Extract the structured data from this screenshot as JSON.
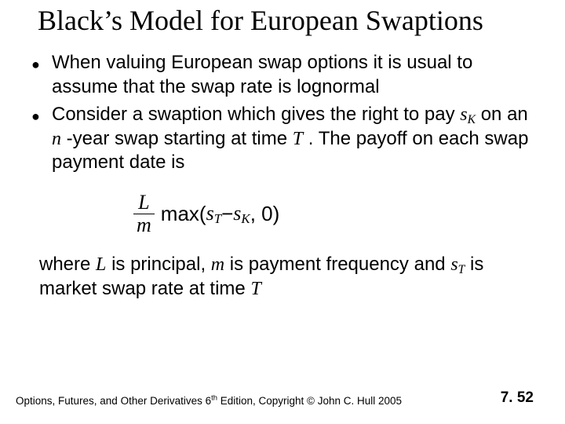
{
  "title": "Black’s Model for European Swaptions",
  "bullets": [
    {
      "pre": "When valuing  European swap options it is usual to assume  that the swap rate is lognormal"
    },
    {
      "pre": "Consider a swaption which gives the right to pay ",
      "sK": "s",
      "sKsub": "K",
      "mid": "  on an ",
      "n": "n",
      "mid2": " -year swap starting at time ",
      "T": "T",
      "post": " . The payoff on each swap payment date is"
    }
  ],
  "formula": {
    "fracTop": "L",
    "fracBot": "m",
    "maxword": "max",
    "open": "(",
    "sT": "s",
    "sTsub": "T",
    "minus": " − ",
    "sK": "s",
    "sKsub": "K",
    "comma": " , 0",
    "close": ")"
  },
  "where": {
    "pre": "where ",
    "L": "L",
    "mid1": " is principal, ",
    "m": "m",
    "mid2": "  is  payment frequency and ",
    "sT": "s",
    "sTsub": "T",
    "mid3": " is market swap rate at time ",
    "T": "T"
  },
  "footer": {
    "left_a": "Options, Futures, and Other Derivatives 6",
    "left_sup": "th",
    "left_b": " Edition, Copyright © John C. Hull 2005",
    "right": "7. 52"
  }
}
